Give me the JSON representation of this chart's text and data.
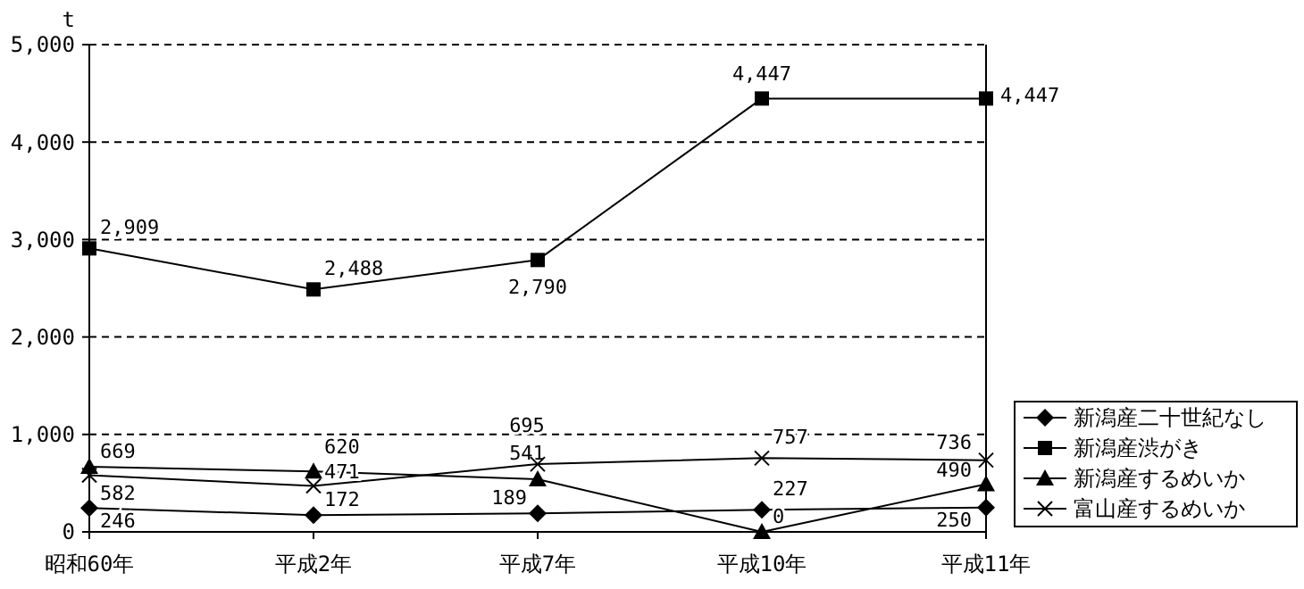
{
  "chart_data": {
    "type": "line",
    "ylabel": "t",
    "categories": [
      "昭和60年",
      "平成2年",
      "平成7年",
      "平成10年",
      "平成11年"
    ],
    "series": [
      {
        "name": "新潟産二十世紀なし",
        "color": "#000000",
        "marker": "diamond",
        "values": [
          246,
          172,
          189,
          227,
          250
        ],
        "value_labels": [
          "246",
          "172",
          "189",
          "227",
          "250"
        ]
      },
      {
        "name": "新潟産渋がき",
        "color": "#000000",
        "marker": "square",
        "values": [
          2909,
          2488,
          2790,
          4447,
          4447
        ],
        "value_labels": [
          "2,909",
          "2,488",
          "2,790",
          "4,447",
          "4,447"
        ]
      },
      {
        "name": "新潟産するめいか",
        "color": "#000000",
        "marker": "triangle",
        "values": [
          669,
          620,
          541,
          0,
          490
        ],
        "value_labels": [
          "669",
          "620",
          "541",
          "0",
          "490"
        ]
      },
      {
        "name": "富山産するめいか",
        "color": "#000000",
        "marker": "cross",
        "values": [
          582,
          471,
          695,
          757,
          736
        ],
        "value_labels": [
          "582",
          "471",
          "695",
          "757",
          "736"
        ]
      }
    ],
    "ylim": [
      0,
      5000
    ],
    "yticks": [
      {
        "value": 0,
        "label": "0"
      },
      {
        "value": 1000,
        "label": "1,000"
      },
      {
        "value": 2000,
        "label": "2,000"
      },
      {
        "value": 3000,
        "label": "3,000"
      },
      {
        "value": 4000,
        "label": "4,000"
      },
      {
        "value": 5000,
        "label": "5,000"
      }
    ],
    "grid": "y",
    "legend": "right"
  }
}
